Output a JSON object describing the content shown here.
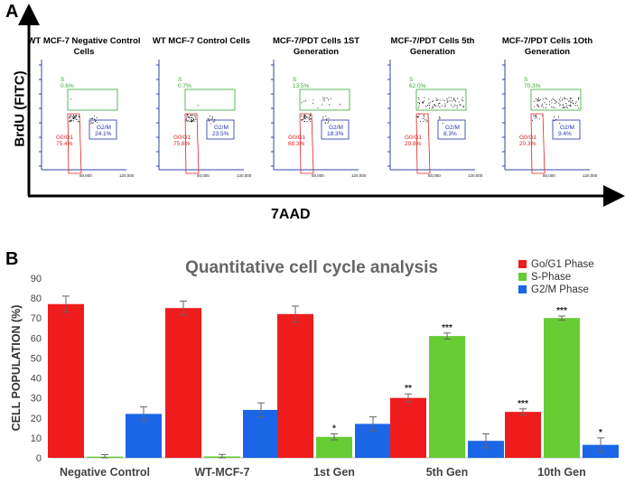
{
  "panel_a": {
    "label": "A",
    "y_axis_label": "BrdU (FITC)",
    "x_axis_label": "7AAD",
    "x_ticks": [
      "50,000",
      "120,000"
    ],
    "plots": [
      {
        "title": "WT MCF-7 Negative Control Cells",
        "gates": {
          "s_label": "S",
          "s_value": "0.6%",
          "g0g1_label": "G0/G1",
          "g0g1_value": "75.4%",
          "g2m_label": "G2/M",
          "g2m_value": "24.1%"
        }
      },
      {
        "title": "WT MCF-7 Control Cells",
        "gates": {
          "s_label": "S",
          "s_value": "0.7%",
          "g0g1_label": "G0/G1",
          "g0g1_value": "75.8%",
          "g2m_label": "G2/M",
          "g2m_value": "23.5%"
        }
      },
      {
        "title": "MCF-7/PDT Cells 1ST Generation",
        "gates": {
          "s_label": "S",
          "s_value": "13.5%",
          "g0g1_label": "G0/G1",
          "g0g1_value": "68.3%",
          "g2m_label": "G2/M",
          "g2m_value": "18.3%"
        }
      },
      {
        "title": "MCF-7/PDT Cells 5th Generation",
        "gates": {
          "s_label": "S",
          "s_value": "62.0%",
          "g0g1_label": "G0/G1",
          "g0g1_value": "29.8%",
          "g2m_label": "G2/M",
          "g2m_value": "8.3%"
        }
      },
      {
        "title": "MCF-7/PDT Cells 1Oth Generation",
        "gates": {
          "s_label": "S",
          "s_value": "70.3%",
          "g0g1_label": "G0/G1",
          "g0g1_value": "20.3%",
          "g2m_label": "G2/M",
          "g2m_value": "9.4%"
        }
      }
    ]
  },
  "panel_b": {
    "label": "B"
  },
  "chart_data": {
    "type": "bar",
    "title": "Quantitative cell cycle analysis",
    "xlabel": "",
    "ylabel": "CELL POPULATION (%)",
    "ylim": [
      0,
      90
    ],
    "yticks": [
      0,
      10,
      20,
      30,
      40,
      50,
      60,
      70,
      80,
      90
    ],
    "grid": false,
    "legend_position": "top-right",
    "categories": [
      "Negative Control",
      "WT-MCF-7",
      "1st Gen",
      "5th Gen",
      "10th Gen"
    ],
    "series": [
      {
        "name": "Go/G1 Phase",
        "color": "#ee1c1c",
        "values": [
          77,
          75,
          72,
          30,
          23
        ],
        "errors": [
          4,
          3.5,
          4,
          2,
          1.5
        ],
        "significance": [
          "",
          "",
          "",
          "**",
          "***"
        ]
      },
      {
        "name": "S-Phase",
        "color": "#66cc33",
        "values": [
          0.6,
          0.7,
          10.5,
          61,
          70
        ],
        "errors": [
          1,
          1,
          1.5,
          1.5,
          1
        ],
        "significance": [
          "",
          "",
          "*",
          "***",
          "***"
        ]
      },
      {
        "name": "G2/M Phase",
        "color": "#1a66e6",
        "values": [
          22,
          24,
          17,
          8.5,
          6.5
        ],
        "errors": [
          3.5,
          3.5,
          3.5,
          3.5,
          3.5
        ],
        "significance": [
          "",
          "",
          "",
          "",
          "*"
        ]
      }
    ]
  }
}
